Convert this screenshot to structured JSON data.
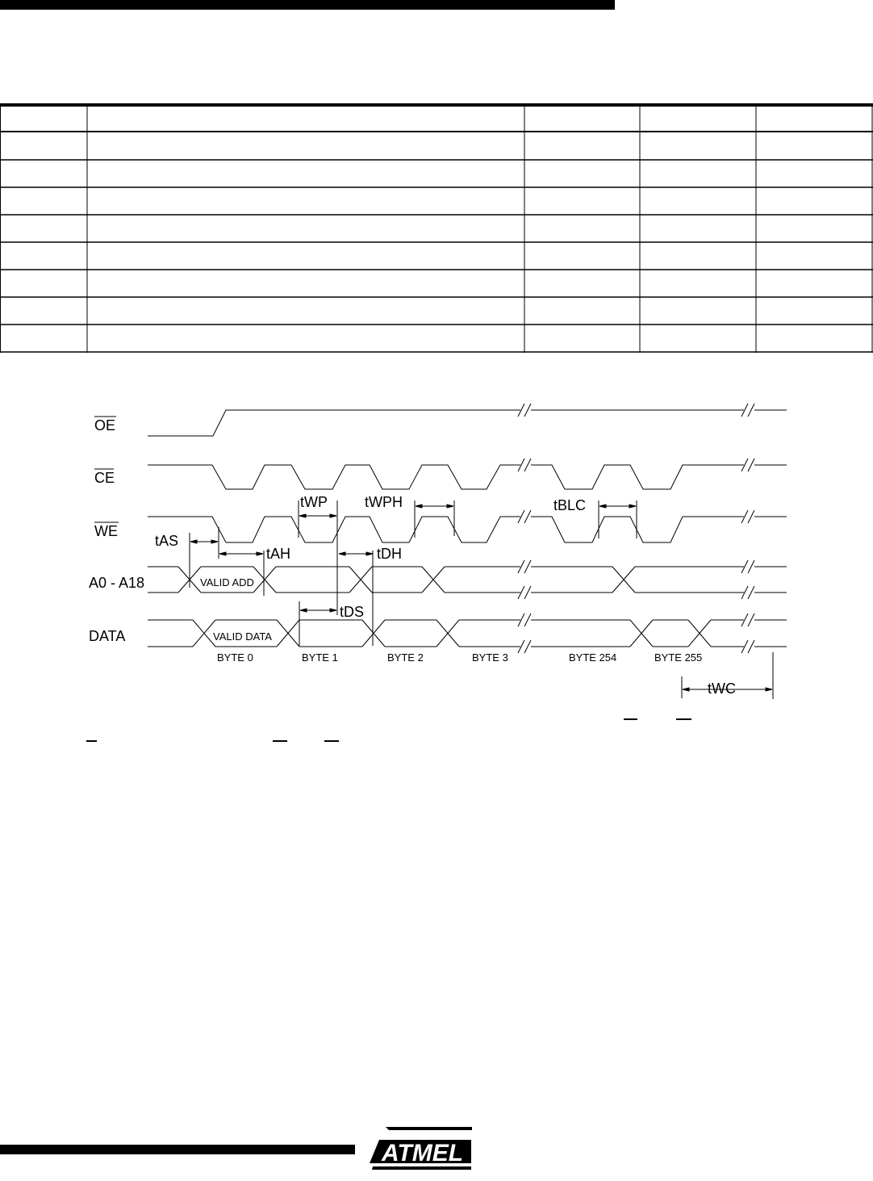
{
  "table": {
    "columns": 5,
    "rows": 8
  },
  "diagram": {
    "signals": [
      {
        "label": "OE",
        "active_low": true
      },
      {
        "label": "CE",
        "active_low": true
      },
      {
        "label": "WE",
        "active_low": true
      },
      {
        "label": "A0 - A18",
        "active_low": false
      },
      {
        "label": "DATA",
        "active_low": false
      }
    ],
    "inline_labels": {
      "valid_add": "VALID ADD",
      "valid_data": "VALID DATA"
    },
    "timing": {
      "tas": "tAS",
      "tah": "tAH",
      "twp": "tWP",
      "twph": "tWPH",
      "tdh": "tDH",
      "tds": "tDS",
      "tblc": "tBLC",
      "twc": "tWC"
    },
    "bytes": [
      "BYTE  0",
      "BYTE  1",
      "BYTE  2",
      "BYTE  3",
      "BYTE 254",
      "BYTE 255"
    ]
  },
  "footer": {
    "logo": "ATMEL"
  }
}
